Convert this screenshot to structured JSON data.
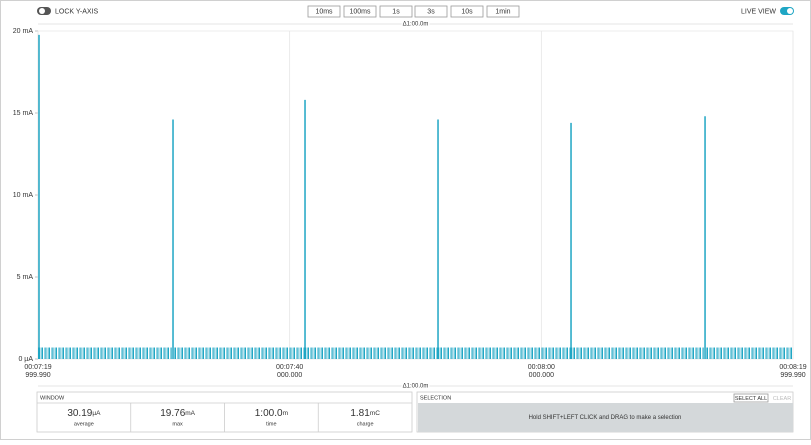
{
  "toolbar": {
    "lock_y_axis": "LOCK Y-AXIS",
    "buttons": [
      "10ms",
      "100ms",
      "1s",
      "3s",
      "10s",
      "1min"
    ],
    "live_view": "LIVE VIEW"
  },
  "chart": {
    "type": "spikes",
    "window_label": "Δ1:00.0m",
    "color": "#1fa6c4",
    "grid": true,
    "ylim": [
      0,
      20
    ],
    "yticks": [
      {
        "value": 0,
        "label": "0 µA"
      },
      {
        "value": 5,
        "label": "5 mA"
      },
      {
        "value": 10,
        "label": "10 mA"
      },
      {
        "value": 15,
        "label": "15 mA"
      },
      {
        "value": 20,
        "label": "20 mA"
      }
    ],
    "xlim": [
      0,
      60
    ],
    "xticks": [
      {
        "value": 0,
        "label": "00:07:19",
        "sublabel": "999.990"
      },
      {
        "value": 20,
        "label": "00:07:40",
        "sublabel": "000.000"
      },
      {
        "value": 40,
        "label": "00:08:00",
        "sublabel": "000.000"
      },
      {
        "value": 60,
        "label": "00:08:19",
        "sublabel": "999.990"
      }
    ],
    "baseline": 0.7,
    "pulses": {
      "x": [
        0.08,
        10.73,
        21.22,
        31.79,
        42.36,
        53.01
      ],
      "values": [
        19.76,
        14.6,
        15.8,
        14.6,
        14.4,
        14.8
      ]
    }
  },
  "bottom_window_label": "Δ1:00.0m",
  "window": {
    "title": "WINDOW",
    "stats": [
      {
        "value": 30.19,
        "unit": "µA",
        "label": "average"
      },
      {
        "value": 19.76,
        "unit": "mA",
        "label": "max"
      },
      {
        "value": "1:00.0",
        "unit": "m",
        "label": "time"
      },
      {
        "value": 1.81,
        "unit": "mC",
        "label": "charge"
      }
    ]
  },
  "selection": {
    "title": "SELECTION",
    "buttons": [
      "SELECT ALL",
      "CLEAR"
    ],
    "hint": "Hold SHIFT+LEFT CLICK and DRAG to make a selection"
  }
}
